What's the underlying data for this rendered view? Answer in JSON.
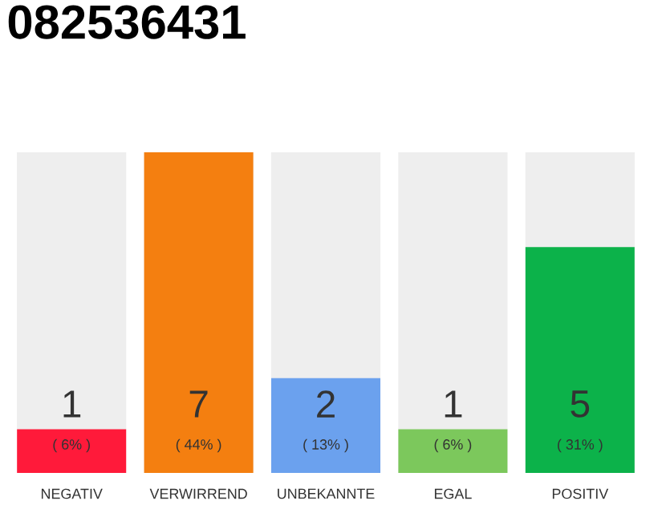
{
  "chart_data": {
    "type": "bar",
    "title": "082536431",
    "categories": [
      "NEGATIV",
      "VERWIRREND",
      "UNBEKANNTE",
      "EGAL",
      "POSITIV"
    ],
    "values": [
      6,
      44,
      13,
      6,
      31
    ],
    "colors": [
      "#ff1a3a",
      "#f47f10",
      "#6ba1ee",
      "#7cc85c",
      "#0cb24a"
    ],
    "value_labels": [
      "( 6% )",
      "( 44% )",
      "( 13% )",
      "( 6% )",
      "( 31% )"
    ],
    "annotations": [
      "1",
      "7",
      "2",
      "1",
      "5"
    ]
  }
}
